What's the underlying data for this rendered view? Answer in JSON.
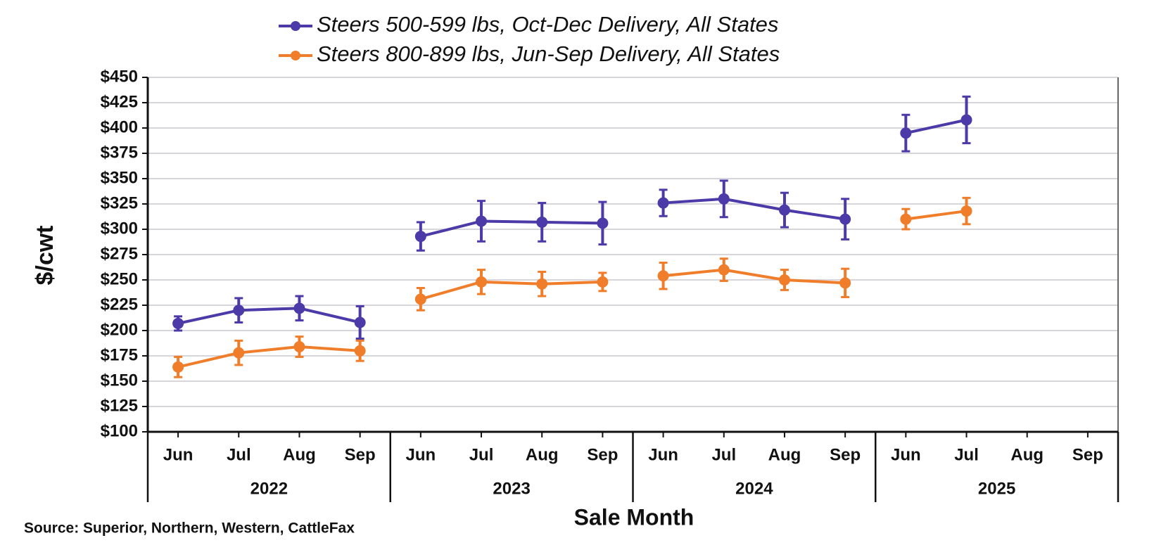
{
  "chart_data": {
    "type": "line",
    "legend": "top",
    "categories": [
      "Jun",
      "Jul",
      "Aug",
      "Sep",
      "Jun",
      "Jul",
      "Aug",
      "Sep",
      "Jun",
      "Jul",
      "Aug",
      "Sep",
      "Jun",
      "Jul",
      "Aug",
      "Sep"
    ],
    "category_groups": [
      "2022",
      "2023",
      "2024",
      "2025"
    ],
    "series": [
      {
        "name": "Steers 500-599 lbs, Oct-Dec Delivery, All States",
        "color": "#4b3aa8",
        "values": [
          207,
          220,
          222,
          208,
          293,
          308,
          307,
          306,
          326,
          330,
          319,
          310,
          395,
          408,
          null,
          null
        ],
        "errors": [
          7,
          12,
          12,
          16,
          14,
          20,
          19,
          21,
          13,
          18,
          17,
          20,
          18,
          23,
          null,
          null
        ]
      },
      {
        "name": "Steers 800-899 lbs, Jun-Sep Delivery, All States",
        "color": "#f07d2a",
        "values": [
          164,
          178,
          184,
          180,
          231,
          248,
          246,
          248,
          254,
          260,
          250,
          247,
          310,
          318,
          null,
          null
        ],
        "errors": [
          10,
          12,
          10,
          10,
          11,
          12,
          12,
          9,
          13,
          11,
          10,
          14,
          10,
          13,
          null,
          null
        ]
      }
    ],
    "y_label": "$/cwt",
    "x_label": "Sale Month",
    "source": "Source: Superior, Northern, Western, CattleFax",
    "ylim": [
      100,
      450
    ],
    "yticks": [
      {
        "value": 100,
        "label": "$100"
      },
      {
        "value": 125,
        "label": "$125"
      },
      {
        "value": 150,
        "label": "$150"
      },
      {
        "value": 175,
        "label": "$175"
      },
      {
        "value": 200,
        "label": "$200"
      },
      {
        "value": 225,
        "label": "$225"
      },
      {
        "value": 250,
        "label": "$250"
      },
      {
        "value": 275,
        "label": "$275"
      },
      {
        "value": 300,
        "label": "$300"
      },
      {
        "value": 325,
        "label": "$325"
      },
      {
        "value": 350,
        "label": "$350"
      },
      {
        "value": 375,
        "label": "$375"
      },
      {
        "value": 400,
        "label": "$400"
      },
      {
        "value": 425,
        "label": "$425"
      },
      {
        "value": 450,
        "label": "$450"
      }
    ],
    "grid": true
  }
}
